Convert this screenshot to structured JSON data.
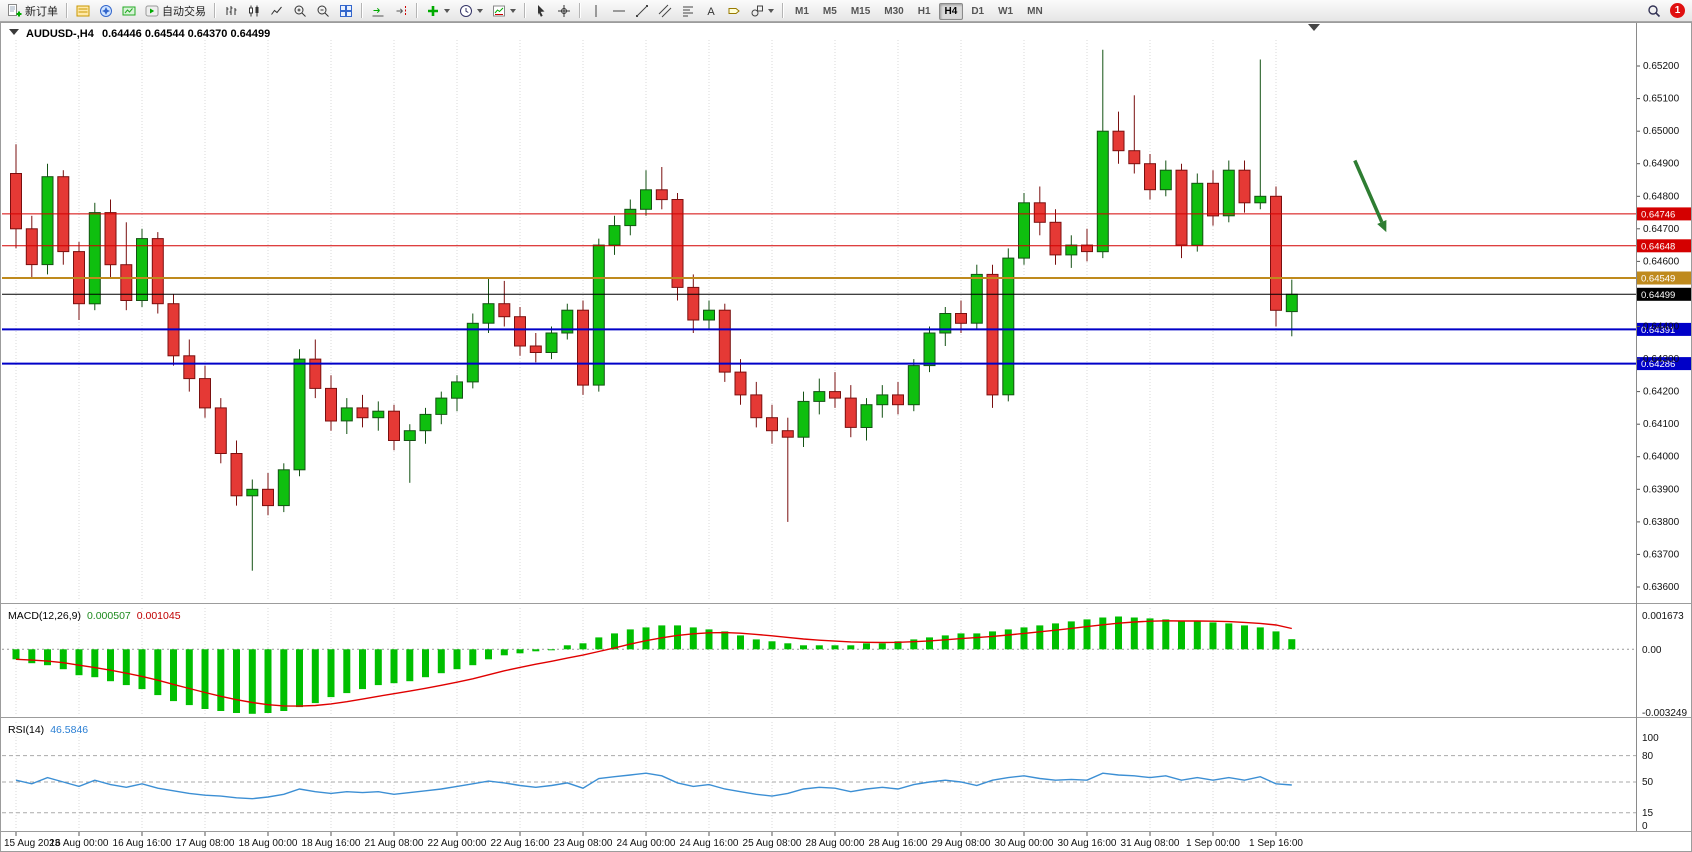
{
  "toolbar": {
    "new_order_label": "新订单",
    "auto_trading_label": "自动交易",
    "timeframes": [
      "M1",
      "M5",
      "M15",
      "M30",
      "H1",
      "H4",
      "D1",
      "W1",
      "MN"
    ],
    "active_timeframe": "H4",
    "notification_count": "1",
    "text_tool_glyph": "A"
  },
  "chart": {
    "symbol_title": "AUDUSD-,H4",
    "ohlc_text": "0.64446 0.64544 0.64370 0.64499"
  },
  "chart_data": {
    "type": "candlestick",
    "symbol": "AUDUSD-",
    "period": "H4",
    "current_ohlc": {
      "open": "0.64446",
      "high": "0.64544",
      "low": "0.64370",
      "close": "0.64499"
    },
    "price_ticks": [
      "0.65200",
      "0.65100",
      "0.65000",
      "0.64900",
      "0.64800",
      "0.64700",
      "0.64600",
      "0.64400",
      "0.64300",
      "0.64200",
      "0.64100",
      "0.64000",
      "0.63900",
      "0.63800",
      "0.63700",
      "0.63600"
    ],
    "time_labels": [
      "15 Aug 2023",
      "16 Aug 00:00",
      "16 Aug 16:00",
      "17 Aug 08:00",
      "18 Aug 00:00",
      "18 Aug 16:00",
      "21 Aug 08:00",
      "22 Aug 00:00",
      "22 Aug 16:00",
      "23 Aug 08:00",
      "24 Aug 00:00",
      "24 Aug 16:00",
      "25 Aug 08:00",
      "28 Aug 00:00",
      "28 Aug 16:00",
      "29 Aug 08:00",
      "30 Aug 00:00",
      "30 Aug 16:00",
      "31 Aug 08:00",
      "1 Sep 00:00",
      "1 Sep 16:00"
    ],
    "label_every_n_candles": 4,
    "candles": [
      [
        0.6487,
        0.6496,
        0.6464,
        0.647
      ],
      [
        0.647,
        0.6474,
        0.6455,
        0.6459
      ],
      [
        0.6459,
        0.649,
        0.6456,
        0.6486
      ],
      [
        0.6486,
        0.6488,
        0.6459,
        0.6463
      ],
      [
        0.6463,
        0.6466,
        0.6442,
        0.6447
      ],
      [
        0.6447,
        0.6478,
        0.6445,
        0.6475
      ],
      [
        0.6475,
        0.6479,
        0.6455,
        0.6459
      ],
      [
        0.6459,
        0.6472,
        0.6445,
        0.6448
      ],
      [
        0.6448,
        0.647,
        0.6446,
        0.6467
      ],
      [
        0.6467,
        0.6469,
        0.6444,
        0.6447
      ],
      [
        0.6447,
        0.645,
        0.6428,
        0.6431
      ],
      [
        0.6431,
        0.6436,
        0.642,
        0.6424
      ],
      [
        0.6424,
        0.6428,
        0.6412,
        0.6415
      ],
      [
        0.6415,
        0.6418,
        0.6398,
        0.6401
      ],
      [
        0.6401,
        0.6405,
        0.6385,
        0.6388
      ],
      [
        0.6388,
        0.6393,
        0.6365,
        0.639
      ],
      [
        0.639,
        0.6395,
        0.6382,
        0.6385
      ],
      [
        0.6385,
        0.6398,
        0.6383,
        0.6396
      ],
      [
        0.6396,
        0.6433,
        0.6394,
        0.643
      ],
      [
        0.643,
        0.6436,
        0.6418,
        0.6421
      ],
      [
        0.6421,
        0.6425,
        0.6408,
        0.6411
      ],
      [
        0.6411,
        0.6418,
        0.6407,
        0.6415
      ],
      [
        0.6415,
        0.6419,
        0.6409,
        0.6412
      ],
      [
        0.6412,
        0.6417,
        0.6408,
        0.6414
      ],
      [
        0.6414,
        0.6416,
        0.6402,
        0.6405
      ],
      [
        0.6405,
        0.641,
        0.6392,
        0.6408
      ],
      [
        0.6408,
        0.6415,
        0.6404,
        0.6413
      ],
      [
        0.6413,
        0.642,
        0.641,
        0.6418
      ],
      [
        0.6418,
        0.6425,
        0.6414,
        0.6423
      ],
      [
        0.6423,
        0.6444,
        0.6421,
        0.6441
      ],
      [
        0.6441,
        0.6455,
        0.6438,
        0.6447
      ],
      [
        0.6447,
        0.6454,
        0.644,
        0.6443
      ],
      [
        0.6443,
        0.6446,
        0.6431,
        0.6434
      ],
      [
        0.6434,
        0.6438,
        0.6429,
        0.6432
      ],
      [
        0.6432,
        0.644,
        0.643,
        0.6438
      ],
      [
        0.6438,
        0.6447,
        0.6436,
        0.6445
      ],
      [
        0.6445,
        0.6448,
        0.6419,
        0.6422
      ],
      [
        0.6422,
        0.6467,
        0.642,
        0.6465
      ],
      [
        0.6465,
        0.6474,
        0.6462,
        0.6471
      ],
      [
        0.6471,
        0.6479,
        0.6468,
        0.6476
      ],
      [
        0.6476,
        0.6488,
        0.6474,
        0.6482
      ],
      [
        0.6482,
        0.6489,
        0.6476,
        0.6479
      ],
      [
        0.6479,
        0.6481,
        0.6448,
        0.6452
      ],
      [
        0.6452,
        0.6456,
        0.6438,
        0.6442
      ],
      [
        0.6442,
        0.6448,
        0.6439,
        0.6445
      ],
      [
        0.6445,
        0.6447,
        0.6423,
        0.6426
      ],
      [
        0.6426,
        0.643,
        0.6416,
        0.6419
      ],
      [
        0.6419,
        0.6423,
        0.6409,
        0.6412
      ],
      [
        0.6412,
        0.6416,
        0.6404,
        0.6408
      ],
      [
        0.6408,
        0.6412,
        0.638,
        0.6406
      ],
      [
        0.6406,
        0.642,
        0.6403,
        0.6417
      ],
      [
        0.6417,
        0.6424,
        0.6413,
        0.642
      ],
      [
        0.642,
        0.6426,
        0.6415,
        0.6418
      ],
      [
        0.6418,
        0.6422,
        0.6406,
        0.6409
      ],
      [
        0.6409,
        0.6418,
        0.6405,
        0.6416
      ],
      [
        0.6416,
        0.6422,
        0.6412,
        0.6419
      ],
      [
        0.6419,
        0.6423,
        0.6413,
        0.6416
      ],
      [
        0.6416,
        0.643,
        0.6414,
        0.6428
      ],
      [
        0.6428,
        0.644,
        0.6426,
        0.6438
      ],
      [
        0.6438,
        0.6446,
        0.6434,
        0.6444
      ],
      [
        0.6444,
        0.6448,
        0.6438,
        0.6441
      ],
      [
        0.6441,
        0.6459,
        0.6439,
        0.6456
      ],
      [
        0.6456,
        0.6459,
        0.6415,
        0.6419
      ],
      [
        0.6419,
        0.6464,
        0.6417,
        0.6461
      ],
      [
        0.6461,
        0.6481,
        0.6459,
        0.6478
      ],
      [
        0.6478,
        0.6483,
        0.6468,
        0.6472
      ],
      [
        0.6472,
        0.6476,
        0.6459,
        0.6462
      ],
      [
        0.6462,
        0.6468,
        0.6458,
        0.6465
      ],
      [
        0.6465,
        0.647,
        0.646,
        0.6463
      ],
      [
        0.6463,
        0.6525,
        0.6461,
        0.65
      ],
      [
        0.65,
        0.6506,
        0.649,
        0.6494
      ],
      [
        0.6494,
        0.6511,
        0.6487,
        0.649
      ],
      [
        0.649,
        0.6493,
        0.6479,
        0.6482
      ],
      [
        0.6482,
        0.6491,
        0.648,
        0.6488
      ],
      [
        0.6488,
        0.649,
        0.6461,
        0.6465
      ],
      [
        0.6465,
        0.6487,
        0.6463,
        0.6484
      ],
      [
        0.6484,
        0.6488,
        0.6471,
        0.6474
      ],
      [
        0.6474,
        0.6491,
        0.6472,
        0.6488
      ],
      [
        0.6488,
        0.6491,
        0.6475,
        0.6478
      ],
      [
        0.6478,
        0.6522,
        0.6476,
        0.648
      ],
      [
        0.648,
        0.6483,
        0.644,
        0.6445
      ],
      [
        0.64446,
        0.64544,
        0.6437,
        0.64499
      ]
    ],
    "hlines": [
      {
        "price": 0.64746,
        "label": "0.64746",
        "color": "#d40000",
        "width": 1
      },
      {
        "price": 0.64648,
        "label": "0.64648",
        "color": "#d40000",
        "width": 1
      },
      {
        "price": 0.64549,
        "label": "0.64549",
        "color": "#bf8a1d",
        "width": 2
      },
      {
        "price": 0.64499,
        "label": "0.64499",
        "color": "#000000",
        "width": 1
      },
      {
        "price": 0.64391,
        "label": "0.64391",
        "color": "#0000c8",
        "width": 2
      },
      {
        "price": 0.64286,
        "label": "0.64286",
        "color": "#0000c8",
        "width": 2
      }
    ],
    "arrow_annotation": {
      "from_candle": 85,
      "from_price": 0.6491,
      "to_candle": 87,
      "to_price": 0.6469,
      "color": "#2e7d32"
    },
    "macd": {
      "label": "MACD(12,26,9)",
      "value_main": "0.000507",
      "value_signal": "0.001045",
      "scale_top": "0.001673",
      "scale_zero": "0.00",
      "scale_bottom": "-0.003249",
      "hist": [
        -0.0005,
        -0.0007,
        -0.0008,
        -0.001,
        -0.0013,
        -0.0014,
        -0.0016,
        -0.0018,
        -0.002,
        -0.0023,
        -0.0026,
        -0.0028,
        -0.003,
        -0.0031,
        -0.0032,
        -0.00324,
        -0.0032,
        -0.0031,
        -0.0029,
        -0.0027,
        -0.0024,
        -0.0022,
        -0.002,
        -0.0018,
        -0.0017,
        -0.0016,
        -0.0014,
        -0.0012,
        -0.001,
        -0.0008,
        -0.0005,
        -0.0003,
        -0.0002,
        -0.0001,
        0.0,
        0.0002,
        0.0003,
        0.0006,
        0.0008,
        0.001,
        0.0011,
        0.0012,
        0.0012,
        0.0011,
        0.001,
        0.0009,
        0.0007,
        0.0005,
        0.0004,
        0.0003,
        0.0002,
        0.0002,
        0.0002,
        0.0002,
        0.0003,
        0.0003,
        0.0004,
        0.0005,
        0.0006,
        0.0007,
        0.0008,
        0.0008,
        0.0009,
        0.001,
        0.0011,
        0.0012,
        0.0013,
        0.0014,
        0.0015,
        0.0016,
        0.00165,
        0.0016,
        0.00155,
        0.0015,
        0.0014,
        0.0014,
        0.00135,
        0.0013,
        0.0012,
        0.0011,
        0.0009,
        0.000507
      ],
      "signal": [
        -0.0005,
        -0.00054,
        -0.00059,
        -0.00067,
        -0.0008,
        -0.00092,
        -0.00105,
        -0.0012,
        -0.00136,
        -0.00155,
        -0.00176,
        -0.00197,
        -0.00217,
        -0.00236,
        -0.00253,
        -0.00267,
        -0.00278,
        -0.00284,
        -0.00285,
        -0.00282,
        -0.00274,
        -0.00263,
        -0.0025,
        -0.00236,
        -0.00223,
        -0.0021,
        -0.00196,
        -0.00181,
        -0.00165,
        -0.00148,
        -0.00128,
        -0.00108,
        -0.00091,
        -0.00075,
        -0.0006,
        -0.00044,
        -0.00029,
        -0.00011,
        7e-05,
        0.00026,
        0.00043,
        0.00058,
        0.0007,
        0.00078,
        0.00083,
        0.00084,
        0.00081,
        0.00075,
        0.00068,
        0.0006,
        0.00052,
        0.00046,
        0.00041,
        0.00037,
        0.00035,
        0.00034,
        0.00035,
        0.00038,
        0.00042,
        0.00048,
        0.00054,
        0.00059,
        0.00065,
        0.00072,
        0.0008,
        0.00088,
        0.00096,
        0.00105,
        0.00114,
        0.00123,
        0.00131,
        0.00137,
        0.00141,
        0.00143,
        0.00142,
        0.00142,
        0.00141,
        0.00139,
        0.00135,
        0.0013,
        0.00122,
        0.001045
      ]
    },
    "rsi": {
      "label": "RSI(14)",
      "value": "46.5846",
      "levels": [
        80,
        50,
        15
      ],
      "scale_labels": [
        "100",
        "80",
        "50",
        "15",
        "0"
      ],
      "values": [
        52,
        48,
        55,
        50,
        45,
        52,
        47,
        44,
        48,
        43,
        40,
        37,
        35,
        34,
        32,
        31,
        33,
        36,
        42,
        39,
        37,
        39,
        38,
        39,
        36,
        38,
        40,
        42,
        45,
        48,
        51,
        49,
        46,
        44,
        46,
        49,
        43,
        54,
        56,
        58,
        60,
        57,
        49,
        45,
        47,
        42,
        39,
        36,
        34,
        37,
        42,
        44,
        43,
        39,
        42,
        44,
        42,
        47,
        50,
        52,
        50,
        46,
        52,
        55,
        57,
        54,
        52,
        53,
        52,
        60,
        58,
        57,
        55,
        57,
        52,
        55,
        52,
        55,
        52,
        56,
        48,
        46.5846
      ]
    },
    "colors": {
      "bull": "#0fbf0f",
      "bull_stroke": "#145214",
      "bear": "#e53935",
      "bear_stroke": "#7a0f0f",
      "macd_hist": "#00bf00",
      "macd_signal": "#e00000",
      "rsi_line": "#3c8fd4",
      "grid": "#d9d9d9"
    }
  }
}
